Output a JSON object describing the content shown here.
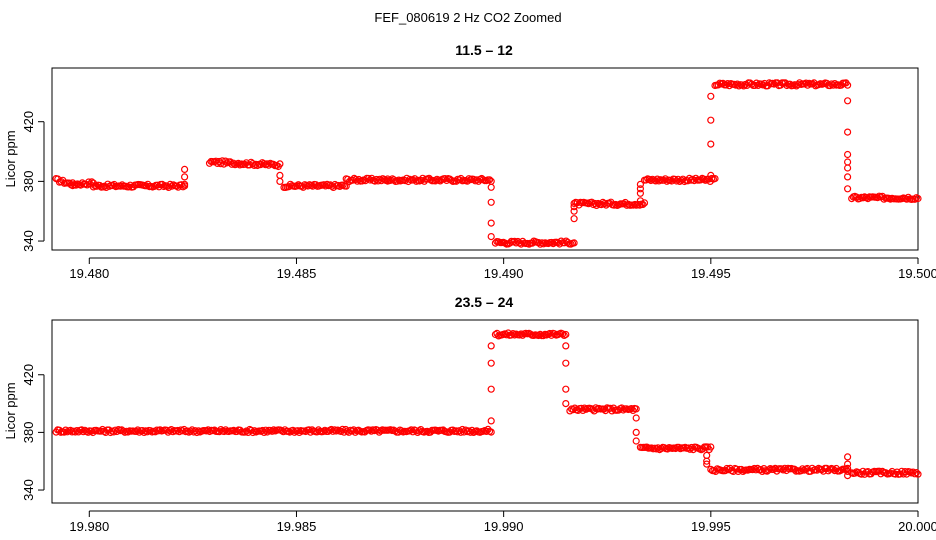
{
  "figure_title": "FEF_080619  2 Hz CO2 Zoomed",
  "chart_data": [
    {
      "type": "scatter",
      "title": "11.5 – 12",
      "ylabel": "Licor ppm",
      "xlabel": "",
      "xlim": [
        19.4791,
        19.5
      ],
      "ylim": [
        334,
        456
      ],
      "xticks": [
        19.48,
        19.485,
        19.49,
        19.495,
        19.5
      ],
      "xtick_labels": [
        "19.480",
        "19.485",
        "19.490",
        "19.495",
        "19.500"
      ],
      "yticks": [
        340,
        380,
        420
      ],
      "ytick_labels": [
        "340",
        "380",
        "420"
      ],
      "marker": "open-circle",
      "color": "#ff0000",
      "segments": [
        {
          "x": [
            19.4792,
            19.4796
          ],
          "y": [
            381,
            378
          ]
        },
        {
          "x": [
            19.4796,
            19.4801
          ],
          "y": [
            378,
            379
          ]
        },
        {
          "x": [
            19.4801,
            19.4823
          ],
          "y": [
            377,
            377
          ]
        },
        {
          "x": [
            19.4829,
            19.4846
          ],
          "y": [
            393,
            391
          ]
        },
        {
          "x": [
            19.4847,
            19.4862
          ],
          "y": [
            377,
            377
          ]
        },
        {
          "x": [
            19.4862,
            19.4872
          ],
          "y": [
            381,
            381
          ]
        },
        {
          "x": [
            19.4872,
            19.4897
          ],
          "y": [
            381,
            381
          ]
        },
        {
          "x": [
            19.4898,
            19.4917
          ],
          "y": [
            339,
            339
          ]
        },
        {
          "x": [
            19.4917,
            19.4934
          ],
          "y": [
            365,
            365
          ]
        },
        {
          "x": [
            19.4934,
            19.4951
          ],
          "y": [
            381,
            381
          ]
        },
        {
          "x": [
            19.4951,
            19.4983
          ],
          "y": [
            445,
            445
          ]
        },
        {
          "x": [
            19.4984,
            19.5
          ],
          "y": [
            369,
            369
          ]
        }
      ],
      "transitions": [
        {
          "x": 19.4823,
          "y": [
            377,
            383,
            388
          ]
        },
        {
          "x": 19.4846,
          "y": [
            384,
            380
          ]
        },
        {
          "x": 19.4897,
          "y": [
            376,
            366,
            352,
            343
          ]
        },
        {
          "x": 19.4917,
          "y": [
            355,
            360,
            363
          ]
        },
        {
          "x": 19.4933,
          "y": [
            372,
            367,
            375,
            378
          ]
        },
        {
          "x": 19.495,
          "y": [
            384,
            405,
            421,
            437
          ]
        },
        {
          "x": 19.4983,
          "y": [
            434,
            413,
            398,
            393,
            389,
            383,
            375
          ]
        }
      ]
    },
    {
      "type": "scatter",
      "title": "23.5 – 24",
      "ylabel": "Licor ppm",
      "xlabel": "",
      "xlim": [
        19.9791,
        20.0
      ],
      "ylim": [
        331,
        458
      ],
      "xticks": [
        19.98,
        19.985,
        19.99,
        19.995,
        20.0
      ],
      "xtick_labels": [
        "19.980",
        "19.985",
        "19.990",
        "19.995",
        "20.000"
      ],
      "yticks": [
        340,
        380,
        420
      ],
      "ytick_labels": [
        "340",
        "380",
        "420"
      ],
      "marker": "open-circle",
      "color": "#ff0000",
      "segments": [
        {
          "x": [
            19.9792,
            19.9897
          ],
          "y": [
            381,
            381
          ]
        },
        {
          "x": [
            19.9898,
            19.9915
          ],
          "y": [
            448,
            448
          ]
        },
        {
          "x": [
            19.9916,
            19.9932
          ],
          "y": [
            396,
            396
          ]
        },
        {
          "x": [
            19.9933,
            19.995
          ],
          "y": [
            369,
            369
          ]
        },
        {
          "x": [
            19.995,
            19.9983
          ],
          "y": [
            354,
            354
          ]
        },
        {
          "x": [
            19.9984,
            20.0
          ],
          "y": [
            352,
            352
          ]
        }
      ],
      "transitions": [
        {
          "x": 19.9897,
          "y": [
            388,
            410,
            428,
            440
          ]
        },
        {
          "x": 19.9915,
          "y": [
            440,
            428,
            410,
            400
          ]
        },
        {
          "x": 19.9932,
          "y": [
            390,
            380,
            374
          ]
        },
        {
          "x": 19.9949,
          "y": [
            364,
            358,
            360
          ]
        },
        {
          "x": 19.9983,
          "y": [
            363,
            358,
            350,
            355
          ]
        }
      ]
    }
  ]
}
